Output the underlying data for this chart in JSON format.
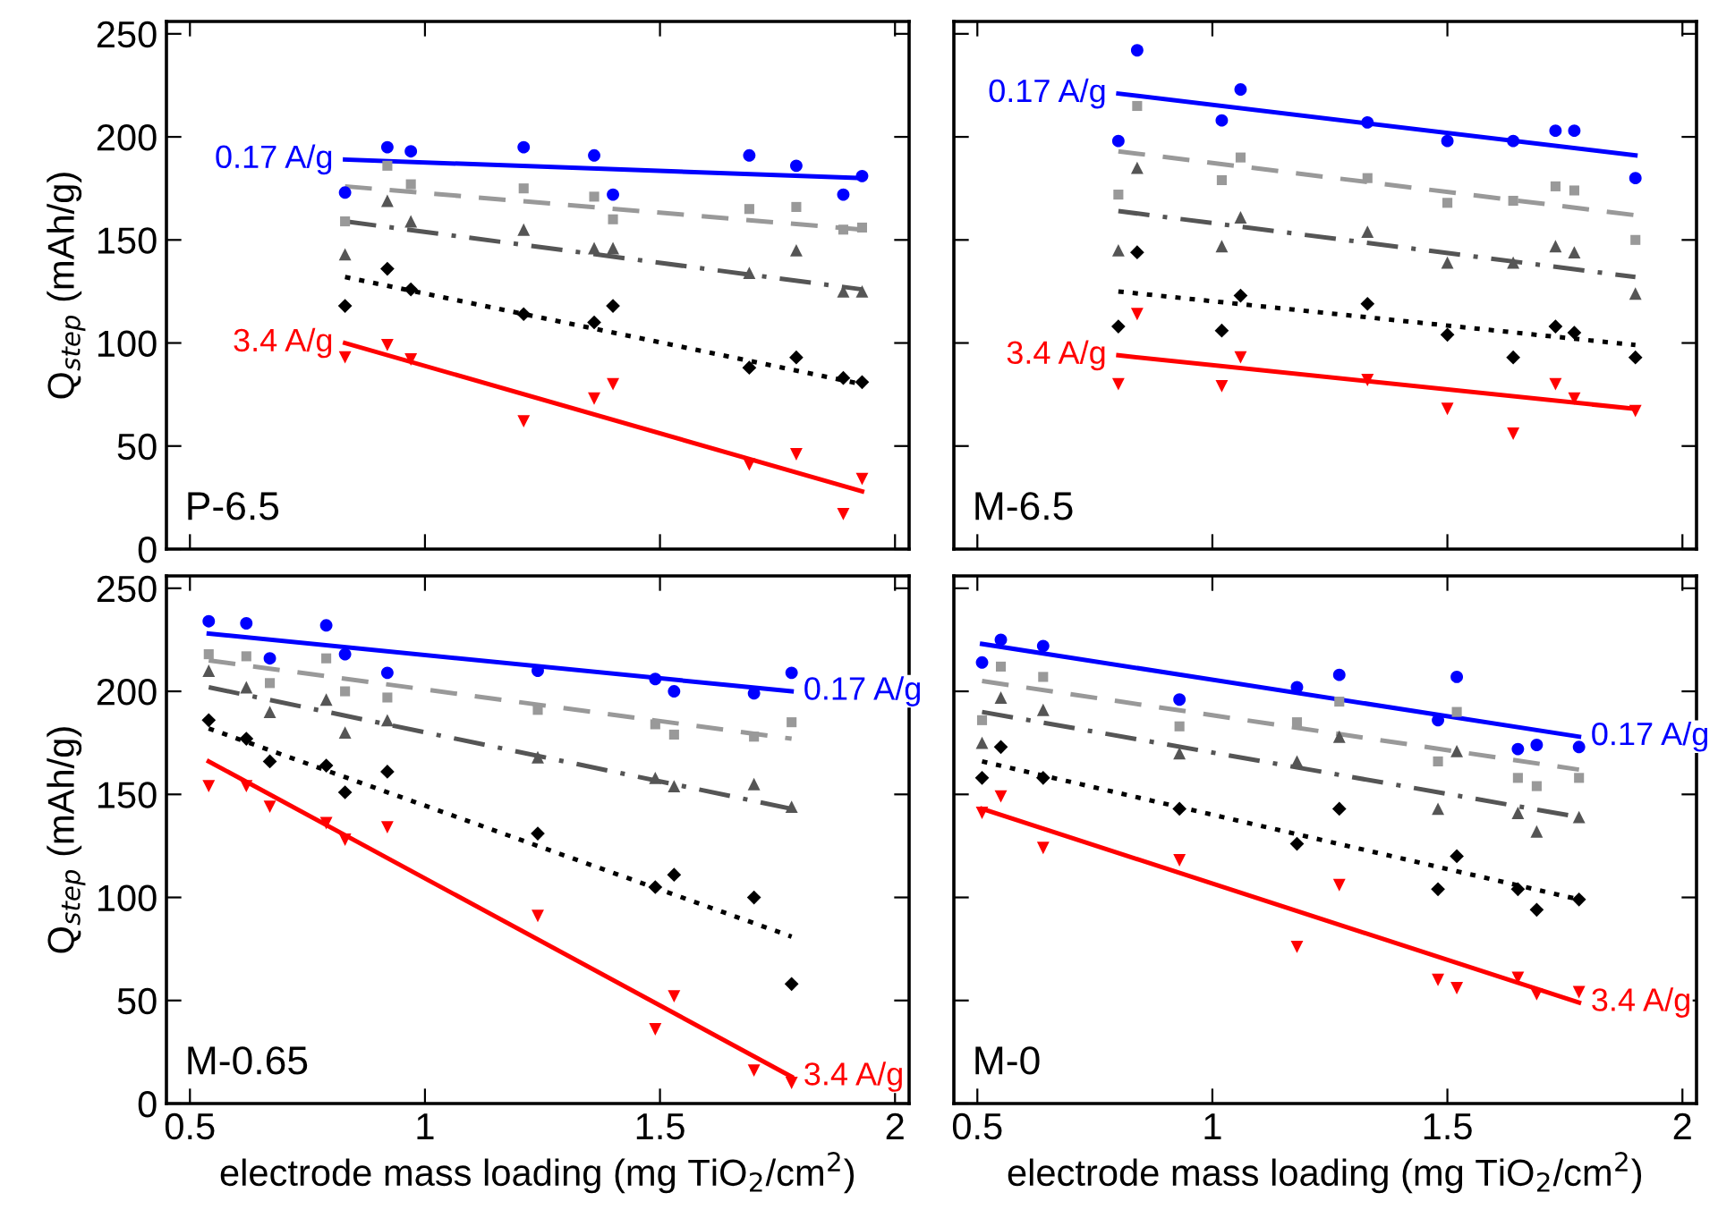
{
  "chart_data": [
    {
      "type": "scatter",
      "ylabel": "Q$_{step}$ (mAh/g)",
      "xlim": [
        0.45,
        2.03
      ],
      "ylim": [
        0,
        256
      ],
      "xticks": [
        0.5,
        1,
        1.5,
        2
      ],
      "yticks": [
        0,
        50,
        100,
        150,
        200,
        250
      ],
      "tick_labels": "y",
      "grid": false,
      "legend": false,
      "annotations": [
        "P-6.5",
        {
          "text": "0.17 A/g",
          "x": 0.83,
          "y": 189
        },
        {
          "text": "3.4 A/g",
          "x": 0.83,
          "y": 100
        }
      ],
      "x": [
        0.83,
        0.92,
        0.97,
        1.21,
        1.36,
        1.4,
        1.69,
        1.79,
        1.89,
        1.93
      ],
      "series": [
        {
          "marker": "circle",
          "color": "#0000ff",
          "values": [
            173,
            195,
            193,
            195,
            191,
            172,
            191,
            186,
            172,
            181
          ]
        },
        {
          "marker": "square",
          "color": "#999999",
          "values": [
            159,
            186,
            177,
            175,
            171,
            160,
            165,
            166,
            155,
            156
          ]
        },
        {
          "marker": "triangle",
          "color": "#555555",
          "values": [
            143,
            169,
            159,
            155,
            146,
            146,
            134,
            145,
            125,
            125
          ]
        },
        {
          "marker": "diamond",
          "color": "#000000",
          "values": [
            118,
            136,
            126,
            114,
            110,
            118,
            88,
            93,
            83,
            81
          ]
        },
        {
          "marker": "triangle_down",
          "color": "#ff0000",
          "values": [
            93,
            99,
            92,
            62,
            73,
            80,
            41,
            46,
            17,
            34
          ]
        },
        {
          "type": "line",
          "line_style": "solid",
          "color": "#0000ff",
          "x": [
            0.83,
            1.93
          ],
          "values": [
            189,
            180
          ]
        },
        {
          "type": "line",
          "line_style": "dashed",
          "color": "#999999",
          "x": [
            0.83,
            1.93
          ],
          "values": [
            176,
            155
          ]
        },
        {
          "type": "line",
          "line_style": "dashdot",
          "color": "#555555",
          "x": [
            0.83,
            1.93
          ],
          "values": [
            159,
            126
          ]
        },
        {
          "type": "line",
          "line_style": "dotted",
          "color": "#000000",
          "x": [
            0.83,
            1.93
          ],
          "values": [
            132,
            80
          ]
        },
        {
          "type": "line",
          "line_style": "solid",
          "color": "#ff0000",
          "x": [
            0.83,
            1.93
          ],
          "values": [
            100,
            28
          ]
        }
      ]
    },
    {
      "type": "scatter",
      "xlim": [
        0.45,
        2.03
      ],
      "ylim": [
        0,
        256
      ],
      "xticks": [
        0.5,
        1,
        1.5,
        2
      ],
      "yticks": [
        0,
        50,
        100,
        150,
        200,
        250
      ],
      "tick_labels": false,
      "grid": false,
      "legend": false,
      "annotations": [
        "M-6.5",
        {
          "text": "0.17 A/g",
          "x": 0.8,
          "y": 221
        },
        {
          "text": "3.4 A/g",
          "x": 0.8,
          "y": 94
        }
      ],
      "x": [
        0.8,
        0.84,
        1.02,
        1.06,
        1.33,
        1.5,
        1.64,
        1.73,
        1.77,
        1.9
      ],
      "series": [
        {
          "marker": "circle",
          "color": "#0000ff",
          "values": [
            198,
            242,
            208,
            223,
            207,
            198,
            198,
            203,
            203,
            180
          ]
        },
        {
          "marker": "square",
          "color": "#999999",
          "values": [
            172,
            215,
            179,
            190,
            180,
            168,
            169,
            176,
            174,
            150
          ]
        },
        {
          "marker": "triangle",
          "color": "#555555",
          "values": [
            145,
            185,
            147,
            161,
            154,
            139,
            139,
            147,
            144,
            124
          ]
        },
        {
          "marker": "diamond",
          "color": "#000000",
          "values": [
            108,
            144,
            106,
            123,
            119,
            104,
            93,
            108,
            105,
            93
          ]
        },
        {
          "marker": "triangle_down",
          "color": "#ff0000",
          "values": [
            80,
            114,
            79,
            93,
            82,
            68,
            56,
            80,
            73,
            67
          ]
        },
        {
          "type": "line",
          "line_style": "solid",
          "color": "#0000ff",
          "x": [
            0.8,
            1.9
          ],
          "values": [
            221,
            191
          ]
        },
        {
          "type": "line",
          "line_style": "dashed",
          "color": "#999999",
          "x": [
            0.8,
            1.9
          ],
          "values": [
            193,
            162
          ]
        },
        {
          "type": "line",
          "line_style": "dashdot",
          "color": "#555555",
          "x": [
            0.8,
            1.9
          ],
          "values": [
            164,
            132
          ]
        },
        {
          "type": "line",
          "line_style": "dotted",
          "color": "#000000",
          "x": [
            0.8,
            1.9
          ],
          "values": [
            125,
            99
          ]
        },
        {
          "type": "line",
          "line_style": "solid",
          "color": "#ff0000",
          "x": [
            0.8,
            1.9
          ],
          "values": [
            94,
            68
          ]
        }
      ]
    },
    {
      "type": "scatter",
      "xlabel": "electrode mass loading (mg TiO$_{2}$/cm$^{2}$)",
      "ylabel": "Q$_{step}$ (mAh/g)",
      "xlim": [
        0.45,
        2.03
      ],
      "ylim": [
        0,
        256
      ],
      "xticks": [
        0.5,
        1,
        1.5,
        2
      ],
      "yticks": [
        0,
        50,
        100,
        150,
        200,
        250
      ],
      "grid": false,
      "legend": false,
      "annotations": [
        "M-0.65",
        {
          "text": "0.17 A/g",
          "x": 1.78,
          "y": 200
        },
        {
          "text": "3.4 A/g",
          "x": 1.78,
          "y": 13
        }
      ],
      "x": [
        0.54,
        0.62,
        0.67,
        0.79,
        0.83,
        0.92,
        1.24,
        1.49,
        1.53,
        1.7,
        1.78
      ],
      "series": [
        {
          "marker": "circle",
          "color": "#0000ff",
          "values": [
            234,
            233,
            216,
            232,
            218,
            209,
            210,
            206,
            200,
            199,
            209
          ]
        },
        {
          "marker": "square",
          "color": "#999999",
          "values": [
            218,
            217,
            204,
            216,
            200,
            197,
            191,
            184,
            179,
            178,
            185
          ]
        },
        {
          "marker": "triangle",
          "color": "#555555",
          "values": [
            210,
            202,
            190,
            196,
            180,
            186,
            168,
            158,
            154,
            155,
            144
          ]
        },
        {
          "marker": "diamond",
          "color": "#000000",
          "values": [
            186,
            177,
            166,
            164,
            151,
            161,
            131,
            105,
            111,
            100,
            58
          ]
        },
        {
          "marker": "triangle_down",
          "color": "#ff0000",
          "values": [
            154,
            154,
            144,
            136,
            128,
            134,
            91,
            36,
            52,
            16,
            10
          ]
        },
        {
          "type": "line",
          "line_style": "solid",
          "color": "#0000ff",
          "x": [
            0.54,
            1.78
          ],
          "values": [
            228,
            200
          ]
        },
        {
          "type": "line",
          "line_style": "dashed",
          "color": "#999999",
          "x": [
            0.54,
            1.78
          ],
          "values": [
            215,
            177
          ]
        },
        {
          "type": "line",
          "line_style": "dashdot",
          "color": "#555555",
          "x": [
            0.54,
            1.78
          ],
          "values": [
            202,
            143
          ]
        },
        {
          "type": "line",
          "line_style": "dotted",
          "color": "#000000",
          "x": [
            0.54,
            1.78
          ],
          "values": [
            182,
            81
          ]
        },
        {
          "type": "line",
          "line_style": "solid",
          "color": "#ff0000",
          "x": [
            0.54,
            1.78
          ],
          "values": [
            166,
            13
          ]
        }
      ]
    },
    {
      "type": "scatter",
      "xlabel": "electrode mass loading (mg TiO$_{2}$/cm$^{2}$)",
      "xlim": [
        0.45,
        2.03
      ],
      "ylim": [
        0,
        256
      ],
      "xticks": [
        0.5,
        1,
        1.5,
        2
      ],
      "yticks": [
        0,
        50,
        100,
        150,
        200,
        250
      ],
      "tick_labels": "x",
      "grid": false,
      "legend": false,
      "annotations": [
        "M-0",
        {
          "text": "0.17 A/g",
          "x": 1.78,
          "y": 178
        },
        {
          "text": "3.4 A/g",
          "x": 1.78,
          "y": 49
        }
      ],
      "x": [
        0.51,
        0.55,
        0.64,
        0.93,
        1.18,
        1.27,
        1.48,
        1.52,
        1.65,
        1.69,
        1.78
      ],
      "series": [
        {
          "marker": "circle",
          "color": "#0000ff",
          "values": [
            214,
            225,
            222,
            196,
            202,
            208,
            186,
            207,
            172,
            174,
            173
          ]
        },
        {
          "marker": "square",
          "color": "#999999",
          "values": [
            186,
            212,
            207,
            183,
            185,
            195,
            166,
            190,
            158,
            154,
            158
          ]
        },
        {
          "marker": "triangle",
          "color": "#555555",
          "values": [
            175,
            197,
            191,
            170,
            166,
            178,
            143,
            171,
            141,
            132,
            139
          ]
        },
        {
          "marker": "diamond",
          "color": "#000000",
          "values": [
            158,
            173,
            158,
            143,
            126,
            143,
            104,
            120,
            104,
            94,
            99
          ]
        },
        {
          "marker": "triangle_down",
          "color": "#ff0000",
          "values": [
            141,
            149,
            124,
            118,
            76,
            106,
            60,
            56,
            61,
            53,
            54
          ]
        },
        {
          "type": "line",
          "line_style": "solid",
          "color": "#0000ff",
          "x": [
            0.51,
            1.78
          ],
          "values": [
            223,
            178
          ]
        },
        {
          "type": "line",
          "line_style": "dashed",
          "color": "#999999",
          "x": [
            0.51,
            1.78
          ],
          "values": [
            205,
            162
          ]
        },
        {
          "type": "line",
          "line_style": "dashdot",
          "color": "#555555",
          "x": [
            0.51,
            1.78
          ],
          "values": [
            190,
            139
          ]
        },
        {
          "type": "line",
          "line_style": "dotted",
          "color": "#000000",
          "x": [
            0.51,
            1.78
          ],
          "values": [
            166,
            99
          ]
        },
        {
          "type": "line",
          "line_style": "solid",
          "color": "#ff0000",
          "x": [
            0.51,
            1.78
          ],
          "values": [
            143,
            49
          ]
        }
      ]
    }
  ]
}
